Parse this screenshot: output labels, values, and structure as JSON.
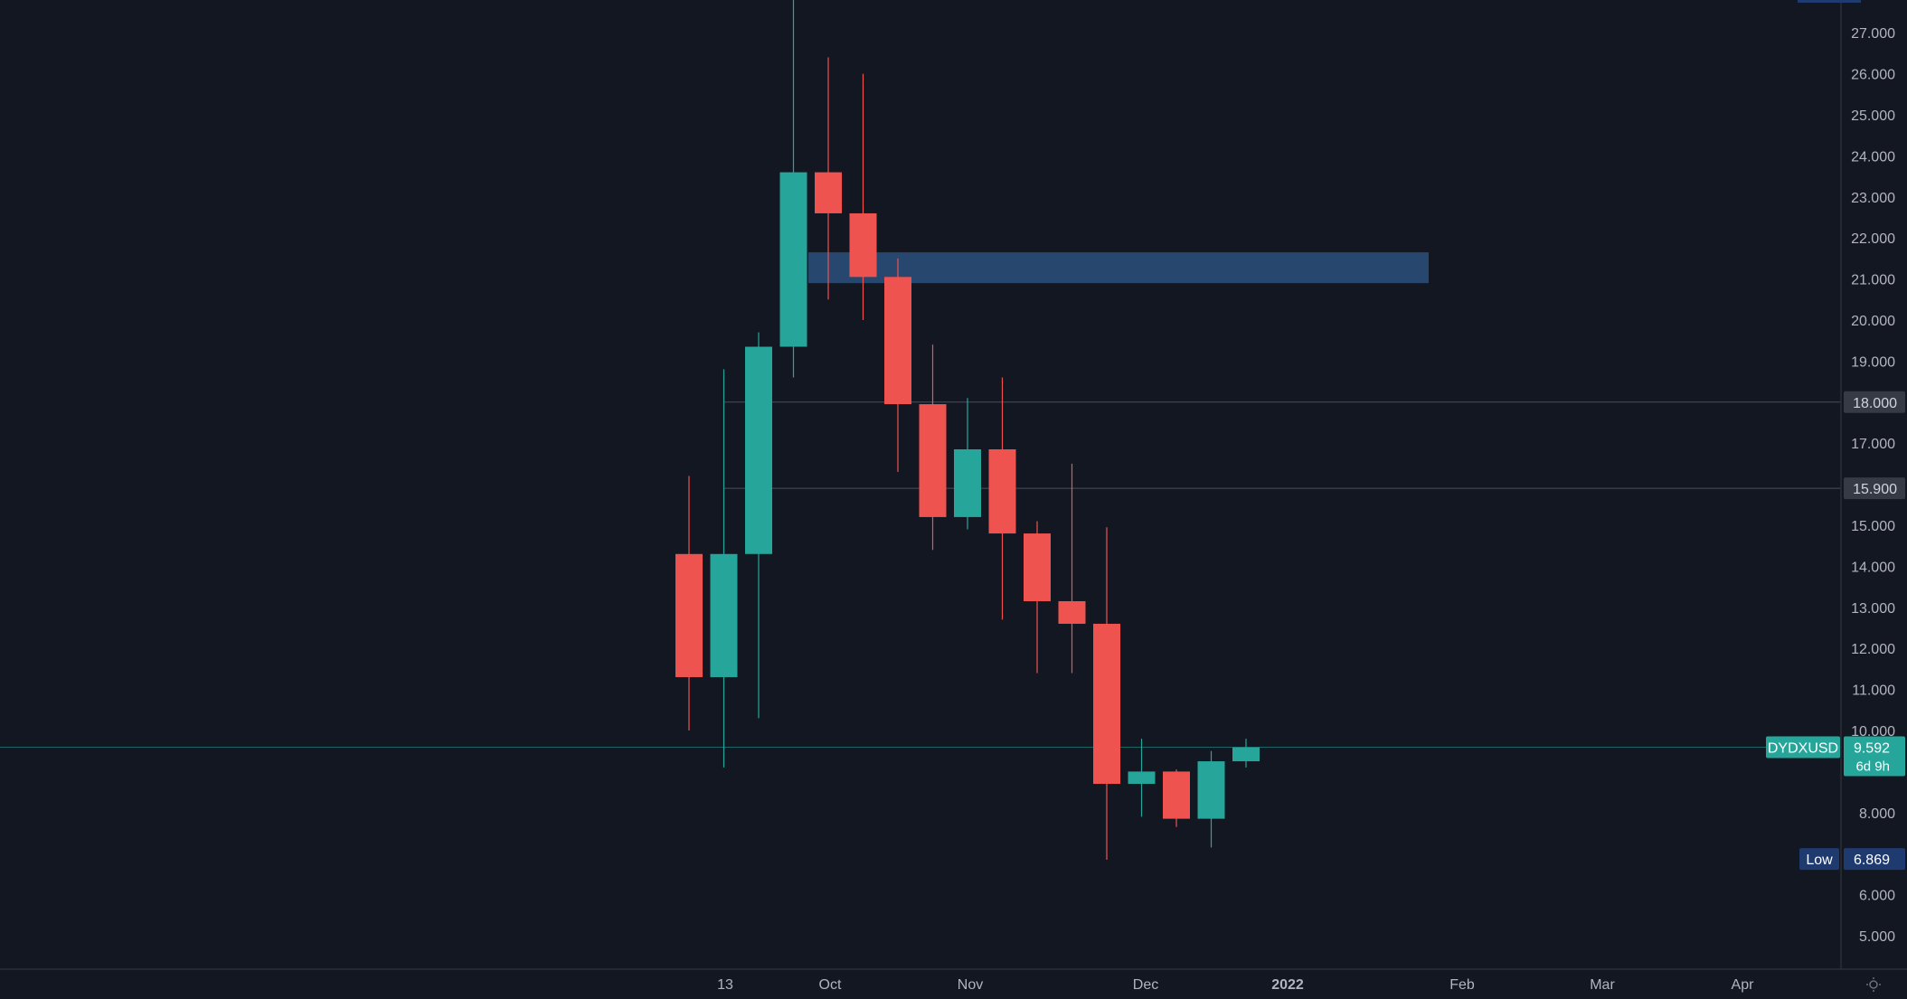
{
  "chart_data": {
    "type": "candlestick",
    "symbol": "DYDXUSD",
    "x_axis_labels": [
      "13",
      "Oct",
      "Nov",
      "Dec",
      "2022",
      "Feb",
      "Mar",
      "Apr"
    ],
    "y_axis_ticks": [
      "5.000",
      "6.000",
      "8.000",
      "10.000",
      "11.000",
      "12.000",
      "13.000",
      "14.000",
      "15.000",
      "17.000",
      "19.000",
      "20.000",
      "21.000",
      "22.000",
      "23.000",
      "24.000",
      "25.000",
      "26.000",
      "27.000"
    ],
    "ylim": [
      4.2,
      27.8
    ],
    "grid": false,
    "candles": [
      {
        "open": 14.3,
        "high": 16.2,
        "low": 10.0,
        "close": 11.3
      },
      {
        "open": 11.3,
        "high": 18.8,
        "low": 9.1,
        "close": 14.3
      },
      {
        "open": 14.3,
        "high": 19.7,
        "low": 10.3,
        "close": 19.35
      },
      {
        "open": 19.35,
        "high": 28.2,
        "low": 18.6,
        "close": 23.6
      },
      {
        "open": 23.6,
        "high": 26.4,
        "low": 20.5,
        "close": 22.6
      },
      {
        "open": 22.6,
        "high": 26.0,
        "low": 20.0,
        "close": 21.05
      },
      {
        "open": 21.05,
        "high": 21.5,
        "low": 16.3,
        "close": 17.95
      },
      {
        "open": 17.95,
        "high": 19.4,
        "low": 14.4,
        "close": 15.2
      },
      {
        "open": 15.2,
        "high": 18.1,
        "low": 14.9,
        "close": 16.85
      },
      {
        "open": 16.85,
        "high": 18.6,
        "low": 12.7,
        "close": 14.8
      },
      {
        "open": 14.8,
        "high": 15.1,
        "low": 11.4,
        "close": 13.15
      },
      {
        "open": 13.15,
        "high": 16.5,
        "low": 11.4,
        "close": 12.6
      },
      {
        "open": 12.6,
        "high": 14.95,
        "low": 6.85,
        "close": 8.7
      },
      {
        "open": 8.7,
        "high": 9.8,
        "low": 7.9,
        "close": 9.0
      },
      {
        "open": 9.0,
        "high": 9.05,
        "low": 7.65,
        "close": 7.85
      },
      {
        "open": 7.85,
        "high": 9.5,
        "low": 7.15,
        "close": 9.25
      },
      {
        "open": 9.25,
        "high": 9.8,
        "low": 9.1,
        "close": 9.59
      }
    ],
    "horizontal_levels": [
      {
        "value": 18.0,
        "label": "18.000"
      },
      {
        "value": 15.9,
        "label": "15.900"
      }
    ],
    "zone": {
      "from": 20.9,
      "to": 21.65
    },
    "last_price": {
      "symbol": "DYDXUSD",
      "value": 9.592,
      "label": "9.592",
      "countdown": "6d 9h"
    },
    "low_marker": {
      "label": "Low",
      "value": 6.869,
      "value_label": "6.869"
    },
    "colors": {
      "background": "#131722",
      "up": "#26a69a",
      "down": "#ef5350",
      "zone": "#27476e",
      "axis_text": "#b2b5be",
      "level_line": "#4a4f5c",
      "level_tag": "#363a45",
      "low_tag": "#1e3a6e",
      "last_price": "#26a69a"
    }
  },
  "settings_icon": "sun-gear-icon"
}
